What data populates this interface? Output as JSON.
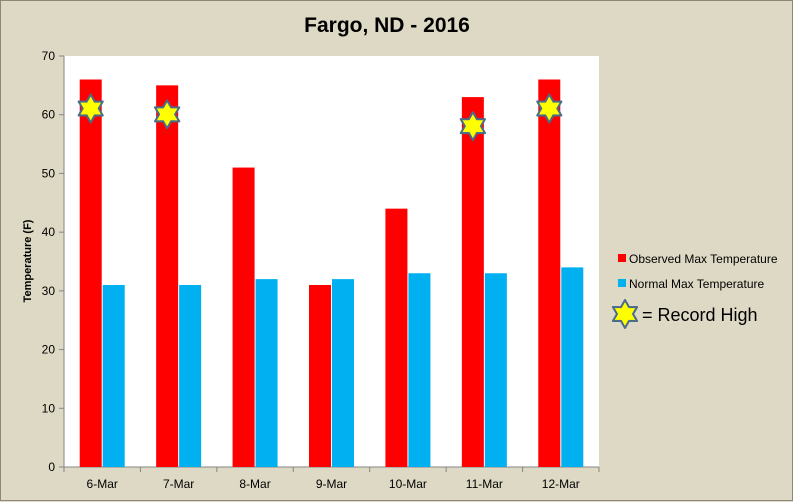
{
  "chart_data": {
    "type": "bar",
    "title": "Fargo, ND - 2016",
    "ylabel": "Temperature (F)",
    "xlabel": "",
    "ylim": [
      0,
      70
    ],
    "yticks": [
      0,
      10,
      20,
      30,
      40,
      50,
      60,
      70
    ],
    "categories": [
      "6-Mar",
      "7-Mar",
      "8-Mar",
      "9-Mar",
      "10-Mar",
      "11-Mar",
      "12-Mar"
    ],
    "series": [
      {
        "name": "Observed Max Temperature",
        "color": "#ff0000",
        "values": [
          66,
          65,
          51,
          31,
          44,
          63,
          66
        ]
      },
      {
        "name": "Normal Max Temperature",
        "color": "#00b0f0",
        "values": [
          31,
          31,
          32,
          32,
          33,
          33,
          34
        ]
      }
    ],
    "record_high": [
      true,
      true,
      false,
      false,
      false,
      true,
      true
    ],
    "legend": {
      "position": "right",
      "record_label": "= Record  High",
      "record_icon": "star-icon"
    },
    "grid": false
  }
}
